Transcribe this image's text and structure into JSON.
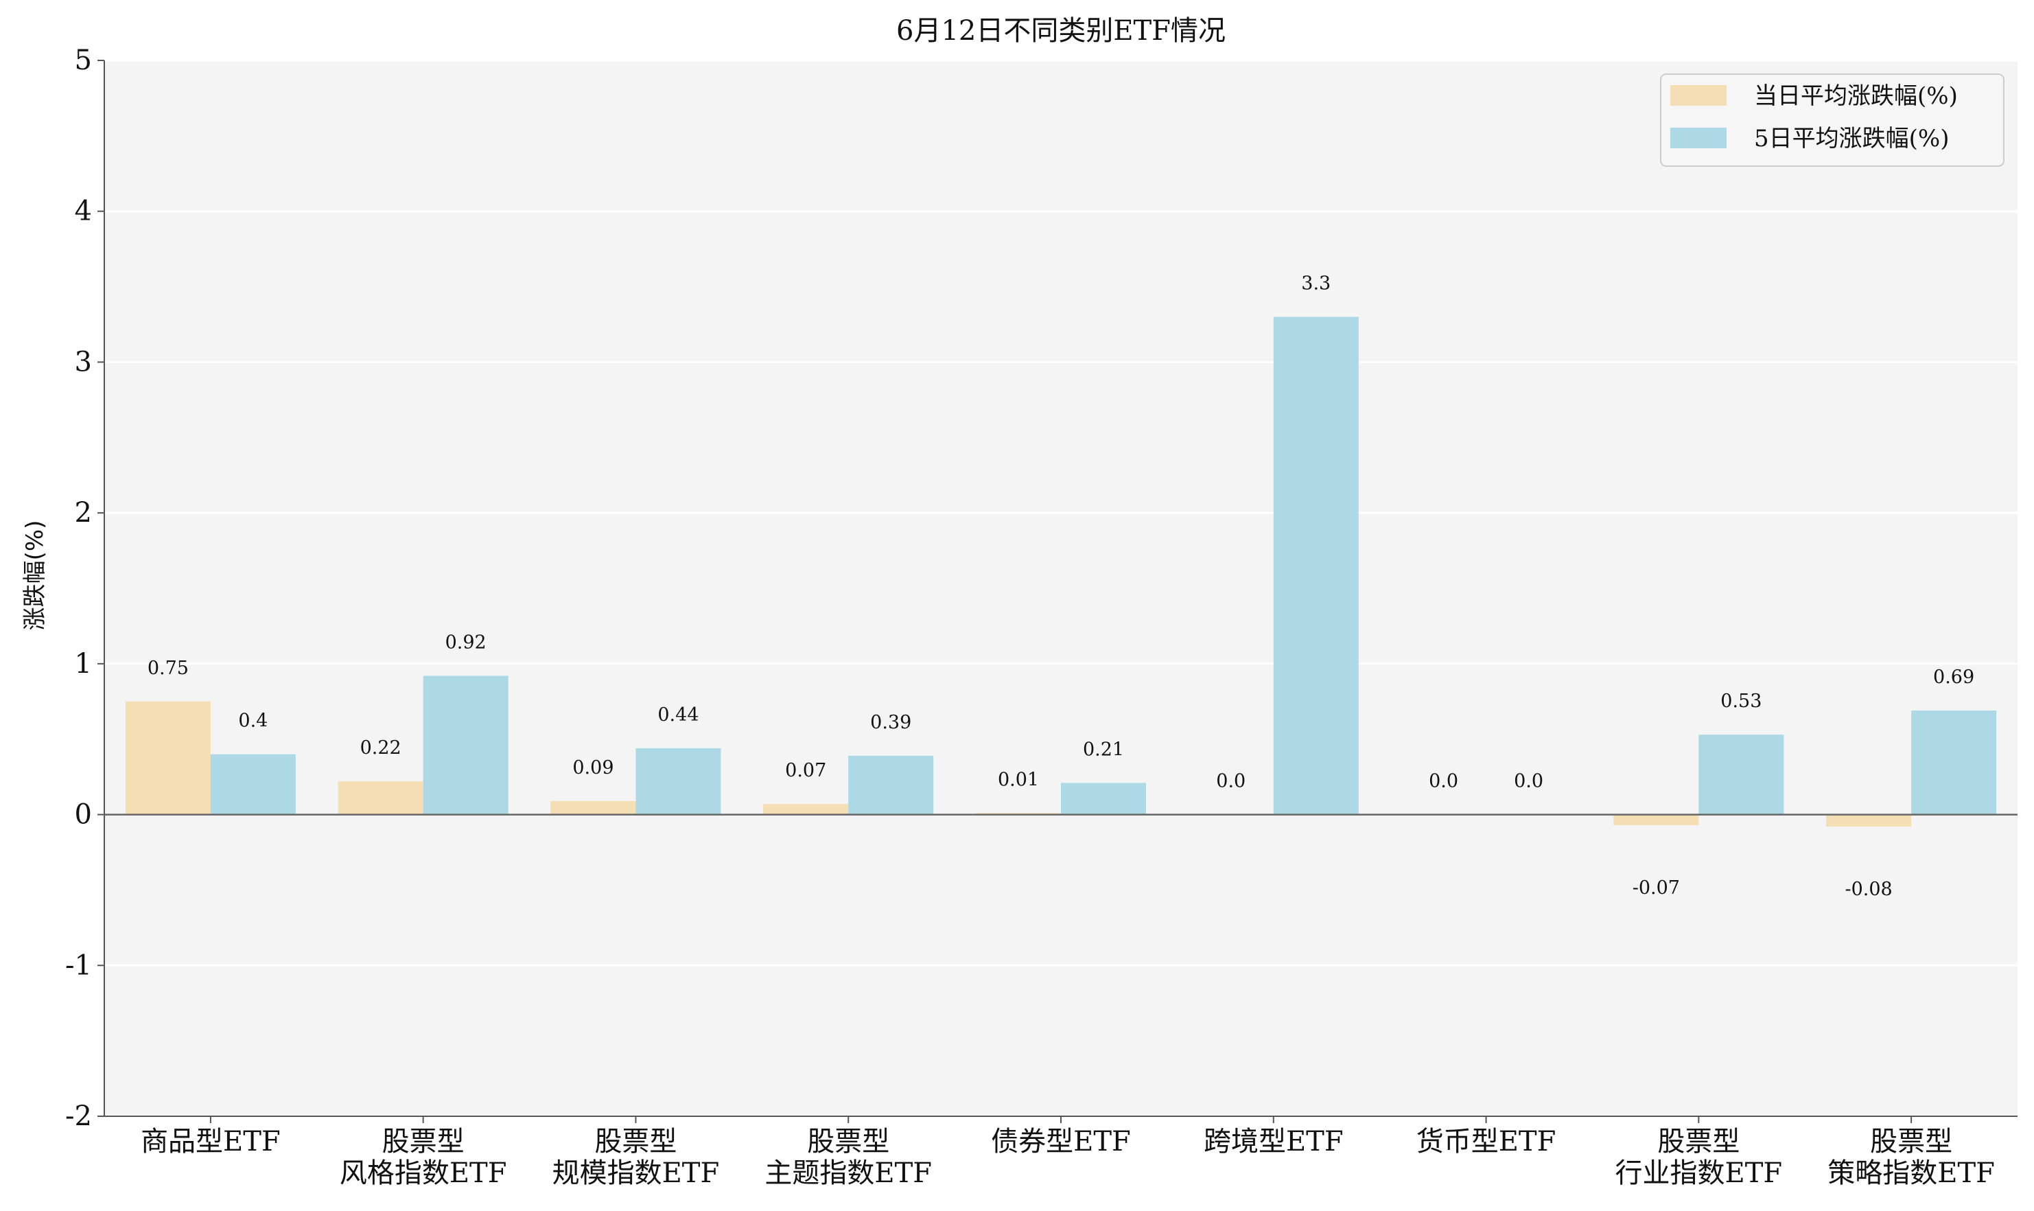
{
  "chart_data": {
    "type": "bar",
    "title": "6月12日不同类别ETF情况",
    "ylabel": "涨跌幅(%)",
    "xlabel": "",
    "ylim": [
      -2,
      5
    ],
    "yticks": [
      -2,
      -1,
      0,
      1,
      2,
      3,
      4,
      5
    ],
    "grid": "horizontal",
    "legend_position": "top-right",
    "categories": [
      [
        "商品型ETF"
      ],
      [
        "股票型",
        "风格指数ETF"
      ],
      [
        "股票型",
        "规模指数ETF"
      ],
      [
        "股票型",
        "主题指数ETF"
      ],
      [
        "债券型ETF"
      ],
      [
        "跨境型ETF"
      ],
      [
        "货币型ETF"
      ],
      [
        "股票型",
        "行业指数ETF"
      ],
      [
        "股票型",
        "策略指数ETF"
      ]
    ],
    "series": [
      {
        "name": "当日平均涨跌幅(%)",
        "color": "#f5deb3",
        "values": [
          0.75,
          0.22,
          0.09,
          0.07,
          0.01,
          0.0,
          0.0,
          -0.07,
          -0.08
        ]
      },
      {
        "name": "5日平均涨跌幅(%)",
        "color": "#add8e6",
        "values": [
          0.4,
          0.92,
          0.44,
          0.39,
          0.21,
          3.3,
          0.0,
          0.53,
          0.69
        ]
      }
    ]
  }
}
